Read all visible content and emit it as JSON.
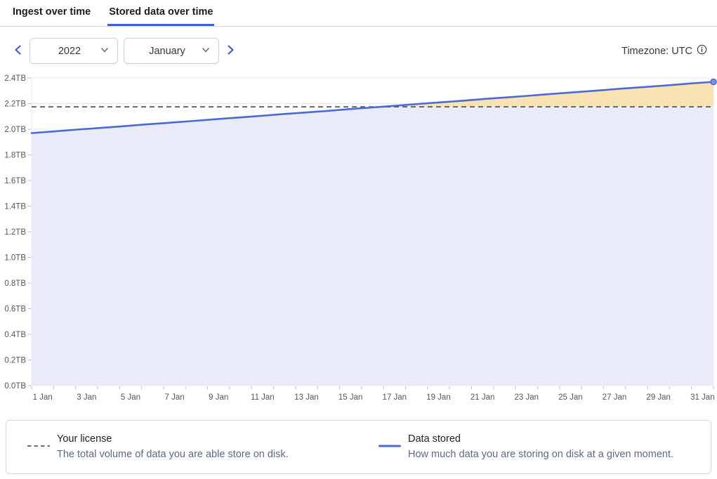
{
  "tabs": [
    {
      "label": "Ingest over time",
      "active": false
    },
    {
      "label": "Stored data over time",
      "active": true
    }
  ],
  "controls": {
    "year": "2022",
    "month": "January",
    "timezone": "Timezone: UTC"
  },
  "legend": [
    {
      "swatch": "dashed",
      "label": "Your license",
      "description": "The total volume of data you are able store on disk."
    },
    {
      "swatch": "solid",
      "label": "Data stored",
      "description": "How much data you are storing on disk at a given moment."
    }
  ],
  "colors": {
    "accent_blue": "#4b6bd2",
    "area_blue": "#e9ecf8",
    "area_orange": "#f9e3b3",
    "license_gray": "#54575f",
    "grid": "#e9ebf1",
    "tick": "#b9bfc9",
    "tab_underline": "#3e61d8",
    "border": "#d3dae6",
    "swatch_dash_gray": "#6b6e76"
  },
  "chart_data": {
    "type": "area",
    "title": "Stored data over time",
    "unit": "TB",
    "ylim": [
      0,
      2.4
    ],
    "grid": "horizontal",
    "legend_position": "bottom",
    "y_tick_values": [
      0,
      0.2,
      0.4,
      0.6,
      0.8,
      1.0,
      1.2,
      1.4,
      1.6,
      1.8,
      2.0,
      2.2,
      2.4
    ],
    "y_tick_labels": [
      "0.0TB",
      "0.2TB",
      "0.4TB",
      "0.6TB",
      "0.8TB",
      "1.0TB",
      "1.2TB",
      "1.4TB",
      "1.6TB",
      "1.8TB",
      "2.0TB",
      "2.2TB",
      "2.4TB"
    ],
    "x": [
      1,
      2,
      3,
      4,
      5,
      6,
      7,
      8,
      9,
      10,
      11,
      12,
      13,
      14,
      15,
      16,
      17,
      18,
      19,
      20,
      21,
      22,
      23,
      24,
      25,
      26,
      27,
      28,
      29,
      30,
      31
    ],
    "x_tick_labels": [
      "1 Jan",
      "3 Jan",
      "5 Jan",
      "7 Jan",
      "9 Jan",
      "11 Jan",
      "13 Jan",
      "15 Jan",
      "17 Jan",
      "19 Jan",
      "21 Jan",
      "23 Jan",
      "25 Jan",
      "27 Jan",
      "29 Jan",
      "31 Jan"
    ],
    "series": [
      {
        "name": "Data stored",
        "type": "line",
        "values": [
          1.97,
          1.983,
          1.997,
          2.01,
          2.023,
          2.037,
          2.05,
          2.063,
          2.077,
          2.09,
          2.103,
          2.117,
          2.13,
          2.143,
          2.157,
          2.17,
          2.183,
          2.197,
          2.21,
          2.223,
          2.237,
          2.25,
          2.263,
          2.277,
          2.29,
          2.303,
          2.317,
          2.33,
          2.343,
          2.357,
          2.37
        ]
      },
      {
        "name": "Your license",
        "type": "threshold",
        "value": 2.175
      }
    ]
  }
}
